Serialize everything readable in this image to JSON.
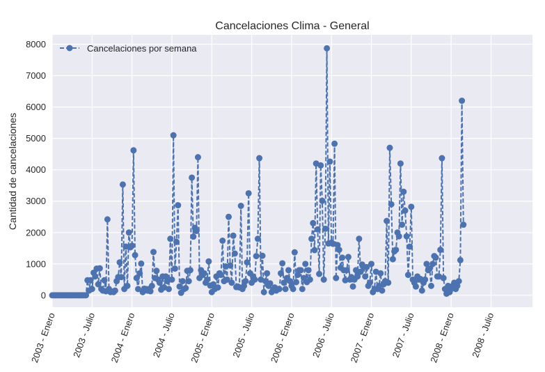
{
  "chart_data": {
    "type": "line",
    "title": "Cancelaciones Clima - General",
    "xlabel": "",
    "ylabel": "Cantidad de cancelaciones",
    "ylim": [
      -380,
      8300
    ],
    "yticks": [
      0,
      1000,
      2000,
      3000,
      4000,
      5000,
      6000,
      7000,
      8000
    ],
    "xtick_labels": [
      "2003 - Enero",
      "2003 - Julio",
      "2004 - Enero",
      "2004 - Julio",
      "2005 - Enero",
      "2005 - Julio",
      "2006 - Enero",
      "2006 - Julio",
      "2007 - Enero",
      "2007 - Julio",
      "2008 - Enero",
      "2008 - Julio"
    ],
    "xtick_weeks": [
      0,
      26,
      52,
      78,
      104,
      130,
      156,
      182,
      208,
      234,
      260,
      286
    ],
    "xlim": [
      0,
      313
    ],
    "grid": true,
    "legend_position": "top-left",
    "series": [
      {
        "name": "Cancelaciones por semana",
        "color": "#4c72b0",
        "linestyle": "dashed",
        "marker": "circle",
        "values": [
          0,
          0,
          0,
          0,
          0,
          0,
          0,
          0,
          0,
          0,
          0,
          0,
          0,
          0,
          0,
          0,
          0,
          0,
          0,
          0,
          0,
          0,
          0,
          480,
          150,
          480,
          200,
          720,
          600,
          850,
          350,
          860,
          200,
          150,
          480,
          130,
          2420,
          200,
          100,
          120,
          100,
          150,
          450,
          580,
          1050,
          580,
          3530,
          200,
          1550,
          300,
          2000,
          1530,
          1580,
          4620,
          1280,
          550,
          200,
          700,
          1010,
          100,
          210,
          200,
          150,
          200,
          130,
          300,
          1380,
          550,
          780,
          500,
          400,
          180,
          600,
          250,
          600,
          450,
          200,
          1800,
          500,
          5100,
          850,
          1700,
          2870,
          280,
          80,
          450,
          200,
          230,
          780,
          450,
          800,
          3750,
          1870,
          2150,
          2050,
          4400,
          550,
          800,
          650,
          700,
          400,
          500,
          1080,
          310,
          100,
          350,
          200,
          600,
          250,
          700,
          650,
          1740,
          450,
          920,
          500,
          2500,
          950,
          400,
          1900,
          1330,
          260,
          280,
          250,
          2850,
          200,
          300,
          450,
          1050,
          3250,
          700,
          400,
          600,
          500,
          1250,
          1800,
          4370,
          500,
          1260,
          100,
          450,
          700,
          300,
          380,
          100,
          180,
          250,
          150,
          200,
          200,
          700,
          1020,
          400,
          200,
          550,
          800,
          450,
          300,
          200,
          1370,
          420,
          650,
          800,
          800,
          200,
          550,
          1000,
          420,
          800,
          500,
          1800,
          2300,
          1440,
          4200,
          2100,
          680,
          4140,
          3010,
          500,
          2120,
          7870,
          1650,
          4260,
          1680,
          1640,
          4830,
          550,
          1600,
          1450,
          880,
          1200,
          800,
          480,
          800,
          1220,
          500,
          580,
          280,
          500,
          800,
          600,
          1800,
          750,
          980,
          900,
          600,
          900,
          300,
          400,
          1000,
          100,
          200,
          750,
          200,
          300,
          700,
          150,
          350,
          450,
          2370,
          400,
          4700,
          2900,
          1150,
          1400,
          1450,
          2000,
          1880,
          4200,
          2250,
          3300,
          2700,
          1880,
          650,
          1550,
          2820,
          500,
          400,
          280,
          600,
          500,
          520,
          150,
          400,
          500,
          1000,
          800,
          850,
          300,
          1000,
          1250,
          1200,
          600,
          600,
          1450,
          4370,
          550,
          200,
          50,
          300,
          100,
          200,
          300,
          400,
          200,
          300,
          450,
          1120,
          6200,
          2250
        ]
      }
    ]
  }
}
